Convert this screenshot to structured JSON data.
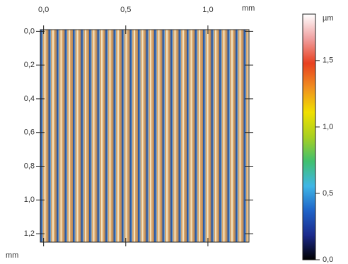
{
  "chart_data": {
    "type": "image",
    "x_unit": "mm",
    "y_unit": "mm",
    "xlim": [
      -0.02,
      1.25
    ],
    "ylim": [
      -0.01,
      1.25
    ],
    "xticks": [
      {
        "value": 0,
        "label": "0,0"
      },
      {
        "value": 0.5,
        "label": "0,5"
      },
      {
        "value": 1.0,
        "label": "1,0"
      }
    ],
    "yticks": [
      {
        "value": 0,
        "label": "0,0"
      },
      {
        "value": 0.2,
        "label": "0,2"
      },
      {
        "value": 0.4,
        "label": "0,4"
      },
      {
        "value": 0.6,
        "label": "0,6"
      },
      {
        "value": 0.8,
        "label": "0,8"
      },
      {
        "value": 1.0,
        "label": "1,0"
      },
      {
        "value": 1.2,
        "label": "1,2"
      }
    ],
    "colorbar": {
      "unit": "µm",
      "lim": [
        0,
        1.85
      ],
      "ticks": [
        {
          "value": 0,
          "label": "0,0"
        },
        {
          "value": 0.5,
          "label": "0,5"
        },
        {
          "value": 1.0,
          "label": "1,0"
        },
        {
          "value": 1.5,
          "label": "1,5"
        }
      ],
      "colormap": [
        "#000000",
        "#1b2a8c",
        "#1f63c8",
        "#3fb6e6",
        "#40c070",
        "#a8d020",
        "#f0e000",
        "#f09020",
        "#e84020",
        "#f0a0a0",
        "#ffffff"
      ]
    }
  }
}
